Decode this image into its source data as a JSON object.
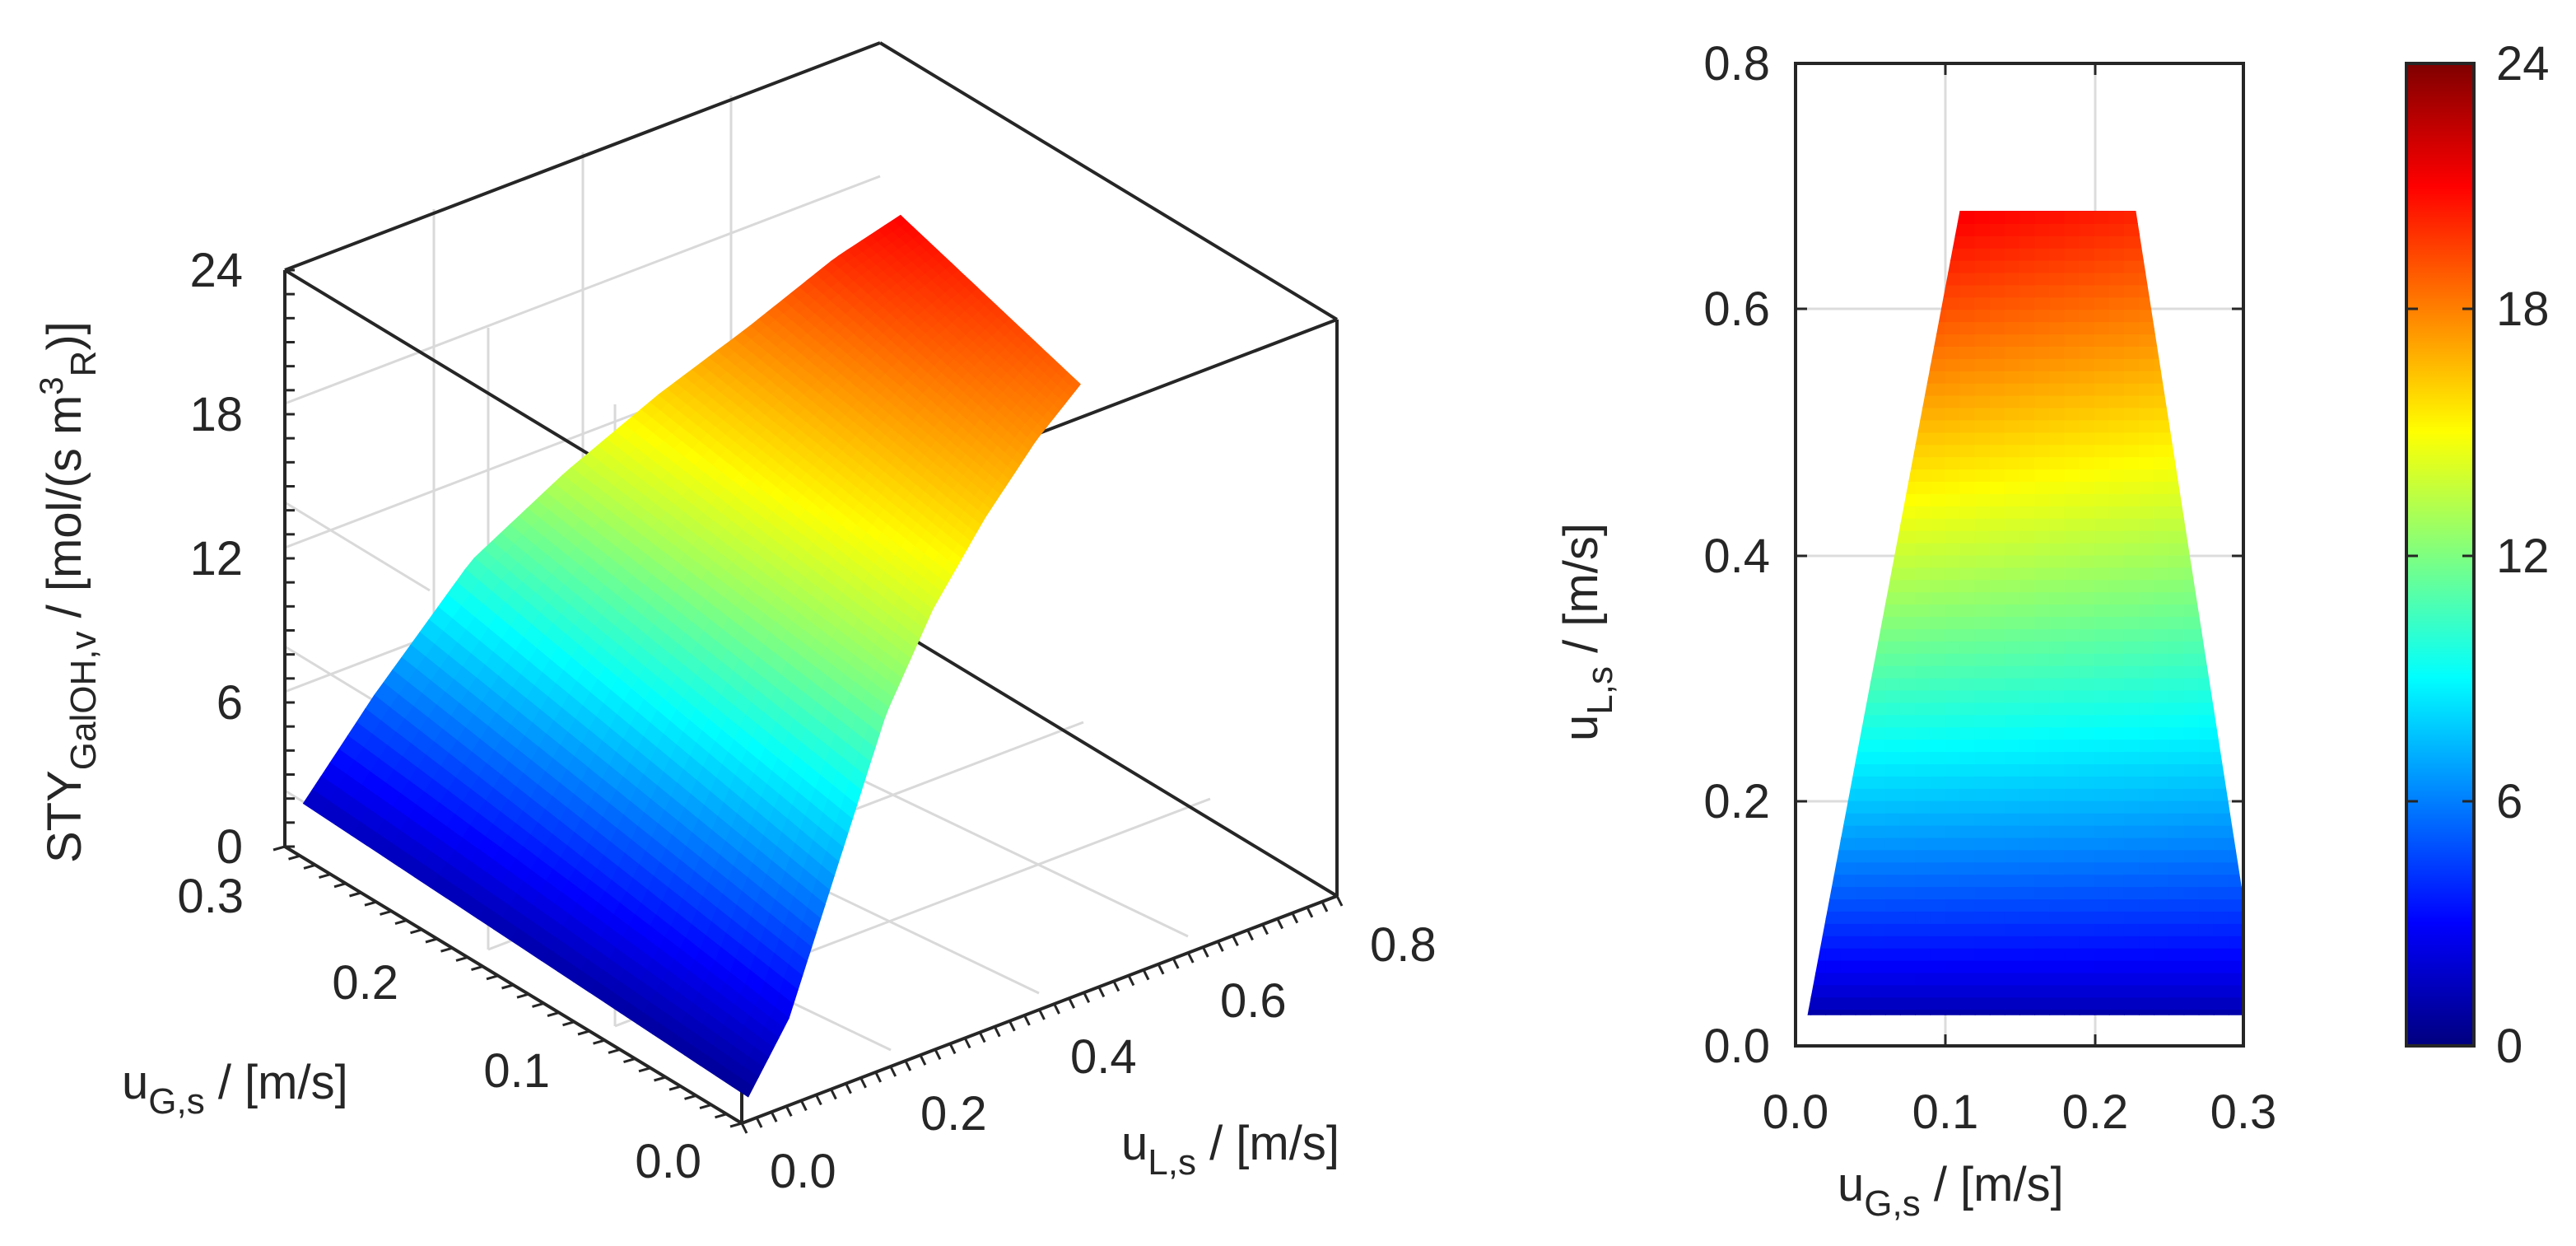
{
  "chart_data": [
    {
      "type": "surface",
      "title": "",
      "xlabel": {
        "main": "u",
        "sub": "L,s",
        "rest": " / [m/s]"
      },
      "ylabel": {
        "main": "u",
        "sub": "G,s",
        "rest": " / [m/s]"
      },
      "zlabel": {
        "main": "STY",
        "sub": "GalOH,v",
        "rest": " / [mol/(s m",
        "sup": "3",
        "sub2": "R",
        "end": ")]"
      },
      "x_ticks": [
        "0.0",
        "0.2",
        "0.4",
        "0.6",
        "0.8"
      ],
      "y_ticks": [
        "0.0",
        "0.1",
        "0.2",
        "0.3"
      ],
      "z_ticks": [
        "0",
        "6",
        "12",
        "18",
        "24"
      ],
      "xlim": [
        0,
        0.8
      ],
      "ylim": [
        0,
        0.3
      ],
      "zlim": [
        0,
        24
      ],
      "grid": true,
      "colormap": "jet",
      "u_L_values": [
        0.025,
        0.1,
        0.2,
        0.3,
        0.4,
        0.5,
        0.6,
        0.68
      ],
      "u_G_max_values": [
        0.3,
        0.29,
        0.275,
        0.262,
        0.25,
        0.24,
        0.232,
        0.228
      ],
      "u_G_min_values": [
        0.008,
        0.018,
        0.035,
        0.052,
        0.07,
        0.085,
        0.1,
        0.11
      ],
      "sty_at_u_G_max": [
        1.5,
        5.5,
        10.5,
        13.5,
        16,
        18,
        20,
        21
      ],
      "sty_at_u_G_min": [
        0.5,
        2.5,
        7,
        11.5,
        14,
        16,
        17.5,
        18.5
      ]
    },
    {
      "type": "heatmap",
      "title": "",
      "xlabel": {
        "main": "u",
        "sub": "G,s",
        "rest": " / [m/s]"
      },
      "ylabel": {
        "main": "u",
        "sub": "L,s",
        "rest": " / [m/s]"
      },
      "x_ticks": [
        "0.0",
        "0.1",
        "0.2",
        "0.3"
      ],
      "y_ticks": [
        "0.0",
        "0.2",
        "0.4",
        "0.6",
        "0.8"
      ],
      "xlim": [
        0,
        0.3
      ],
      "ylim": [
        0,
        0.8
      ],
      "grid": true,
      "region_vertices": [
        [
          0.008,
          0.025
        ],
        [
          0.3,
          0.025
        ],
        [
          0.3,
          0.12
        ],
        [
          0.228,
          0.68
        ],
        [
          0.11,
          0.68
        ]
      ],
      "value_low": 1,
      "value_high": 21
    },
    {
      "type": "colorbar",
      "ticks": [
        "0",
        "6",
        "12",
        "18",
        "24"
      ],
      "range": [
        0,
        24
      ],
      "colormap": "jet"
    }
  ]
}
